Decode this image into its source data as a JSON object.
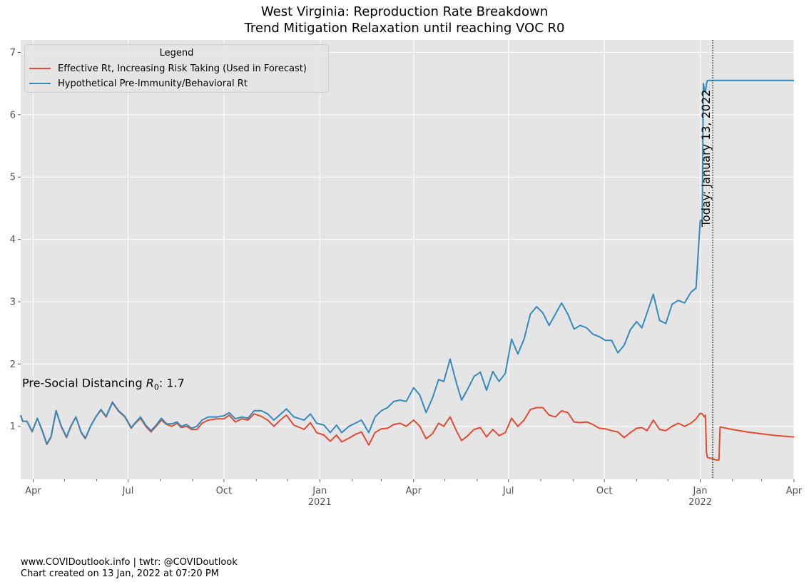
{
  "title_line1": "West Virginia: Reproduction Rate Breakdown",
  "title_line2": "Trend Mitigation Relaxation until reaching VOC R0",
  "legend": {
    "title": "Legend",
    "items": [
      {
        "label": "Effective Rt, Increasing Risk Taking (Used in Forecast)",
        "color": "#E24A33"
      },
      {
        "label": "Hypothetical Pre-Immunity/Behavioral Rt",
        "color": "#348ABD"
      }
    ]
  },
  "annotations": {
    "pre_social": "Pre-Social Distancing R0: 1.7",
    "today": "Today: January 13, 2022"
  },
  "footer": {
    "line1": "www.COVIDoutlook.info | twtr: @COVIDoutlook",
    "line2": "Chart created on 13 Jan, 2022 at 07:20 PM"
  },
  "chart_data": {
    "type": "line",
    "title": "West Virginia: Reproduction Rate Breakdown\nTrend Mitigation Relaxation until reaching VOC R0",
    "xlim": [
      "2020-03-20",
      "2022-04-01"
    ],
    "ylim": [
      0.15,
      7.2
    ],
    "grid": true,
    "legend_placement": "upper-left",
    "x_ticks": [
      {
        "date": "2020-04-01",
        "label": "Apr"
      },
      {
        "date": "2020-07-01",
        "label": "Jul"
      },
      {
        "date": "2020-10-01",
        "label": "Oct"
      },
      {
        "date": "2021-01-01",
        "label": "Jan",
        "sublabel": "2021"
      },
      {
        "date": "2021-04-01",
        "label": "Apr"
      },
      {
        "date": "2021-07-01",
        "label": "Jul"
      },
      {
        "date": "2021-10-01",
        "label": "Oct"
      },
      {
        "date": "2022-01-01",
        "label": "Jan",
        "sublabel": "2022"
      },
      {
        "date": "2022-04-01",
        "label": "Apr"
      }
    ],
    "minor_ticks": [
      "2020-05-01",
      "2020-06-01",
      "2020-08-01",
      "2020-09-01",
      "2020-11-01",
      "2020-12-01",
      "2021-02-01",
      "2021-03-01",
      "2021-05-01",
      "2021-06-01",
      "2021-08-01",
      "2021-09-01",
      "2021-11-01",
      "2021-12-01",
      "2022-02-01",
      "2022-03-01"
    ],
    "y_ticks": [
      1,
      2,
      3,
      4,
      5,
      6,
      7
    ],
    "today_line": "2022-01-13",
    "pre_social_r0": 1.7,
    "series": [
      {
        "name": "Effective Rt, Increasing Risk Taking (Used in Forecast)",
        "color": "#E24A33",
        "points": [
          [
            "2020-03-20",
            1.17
          ],
          [
            "2020-03-22",
            1.08
          ],
          [
            "2020-03-26",
            1.08
          ],
          [
            "2020-03-31",
            0.91
          ],
          [
            "2020-04-05",
            1.13
          ],
          [
            "2020-04-10",
            0.91
          ],
          [
            "2020-04-14",
            0.71
          ],
          [
            "2020-04-18",
            0.82
          ],
          [
            "2020-04-23",
            1.25
          ],
          [
            "2020-04-28",
            0.99
          ],
          [
            "2020-05-03",
            0.82
          ],
          [
            "2020-05-07",
            0.99
          ],
          [
            "2020-05-12",
            1.15
          ],
          [
            "2020-05-17",
            0.9
          ],
          [
            "2020-05-21",
            0.8
          ],
          [
            "2020-05-26",
            1.0
          ],
          [
            "2020-05-31",
            1.15
          ],
          [
            "2020-06-05",
            1.26
          ],
          [
            "2020-06-10",
            1.15
          ],
          [
            "2020-06-16",
            1.38
          ],
          [
            "2020-06-22",
            1.24
          ],
          [
            "2020-06-28",
            1.15
          ],
          [
            "2020-07-04",
            0.97
          ],
          [
            "2020-07-08",
            1.05
          ],
          [
            "2020-07-13",
            1.13
          ],
          [
            "2020-07-18",
            1.0
          ],
          [
            "2020-07-23",
            0.91
          ],
          [
            "2020-07-28",
            1.0
          ],
          [
            "2020-08-02",
            1.1
          ],
          [
            "2020-08-07",
            1.03
          ],
          [
            "2020-08-12",
            1.0
          ],
          [
            "2020-08-17",
            1.05
          ],
          [
            "2020-08-21",
            0.98
          ],
          [
            "2020-08-26",
            1.0
          ],
          [
            "2020-08-31",
            0.95
          ],
          [
            "2020-09-05",
            0.95
          ],
          [
            "2020-09-10",
            1.05
          ],
          [
            "2020-09-16",
            1.1
          ],
          [
            "2020-09-24",
            1.12
          ],
          [
            "2020-10-01",
            1.12
          ],
          [
            "2020-10-06",
            1.18
          ],
          [
            "2020-10-12",
            1.07
          ],
          [
            "2020-10-18",
            1.12
          ],
          [
            "2020-10-24",
            1.1
          ],
          [
            "2020-10-30",
            1.2
          ],
          [
            "2020-11-06",
            1.16
          ],
          [
            "2020-11-12",
            1.1
          ],
          [
            "2020-11-18",
            1.0
          ],
          [
            "2020-11-24",
            1.1
          ],
          [
            "2020-11-30",
            1.18
          ],
          [
            "2020-12-07",
            1.02
          ],
          [
            "2020-12-13",
            0.98
          ],
          [
            "2020-12-17",
            0.95
          ],
          [
            "2020-12-23",
            1.06
          ],
          [
            "2020-12-29",
            0.9
          ],
          [
            "2021-01-05",
            0.86
          ],
          [
            "2021-01-11",
            0.76
          ],
          [
            "2021-01-17",
            0.86
          ],
          [
            "2021-01-22",
            0.75
          ],
          [
            "2021-01-29",
            0.81
          ],
          [
            "2021-02-04",
            0.87
          ],
          [
            "2021-02-10",
            0.91
          ],
          [
            "2021-02-17",
            0.7
          ],
          [
            "2021-02-23",
            0.9
          ],
          [
            "2021-03-01",
            0.96
          ],
          [
            "2021-03-07",
            0.97
          ],
          [
            "2021-03-13",
            1.03
          ],
          [
            "2021-03-19",
            1.05
          ],
          [
            "2021-03-25",
            1.0
          ],
          [
            "2021-04-01",
            1.1
          ],
          [
            "2021-04-07",
            1.0
          ],
          [
            "2021-04-13",
            0.8
          ],
          [
            "2021-04-19",
            0.88
          ],
          [
            "2021-04-25",
            1.05
          ],
          [
            "2021-04-30",
            1.0
          ],
          [
            "2021-05-06",
            1.15
          ],
          [
            "2021-05-12",
            0.93
          ],
          [
            "2021-05-17",
            0.77
          ],
          [
            "2021-05-23",
            0.85
          ],
          [
            "2021-05-29",
            0.95
          ],
          [
            "2021-06-04",
            0.98
          ],
          [
            "2021-06-10",
            0.83
          ],
          [
            "2021-06-16",
            0.95
          ],
          [
            "2021-06-22",
            0.85
          ],
          [
            "2021-06-28",
            0.9
          ],
          [
            "2021-07-04",
            1.13
          ],
          [
            "2021-07-10",
            1.0
          ],
          [
            "2021-07-16",
            1.1
          ],
          [
            "2021-07-22",
            1.27
          ],
          [
            "2021-07-28",
            1.3
          ],
          [
            "2021-08-03",
            1.3
          ],
          [
            "2021-08-09",
            1.18
          ],
          [
            "2021-08-15",
            1.15
          ],
          [
            "2021-08-21",
            1.25
          ],
          [
            "2021-08-27",
            1.22
          ],
          [
            "2021-09-02",
            1.07
          ],
          [
            "2021-09-08",
            1.06
          ],
          [
            "2021-09-14",
            1.07
          ],
          [
            "2021-09-20",
            1.03
          ],
          [
            "2021-09-26",
            0.97
          ],
          [
            "2021-10-02",
            0.96
          ],
          [
            "2021-10-08",
            0.93
          ],
          [
            "2021-10-14",
            0.91
          ],
          [
            "2021-10-20",
            0.82
          ],
          [
            "2021-10-26",
            0.9
          ],
          [
            "2021-11-01",
            0.97
          ],
          [
            "2021-11-06",
            0.98
          ],
          [
            "2021-11-11",
            0.93
          ],
          [
            "2021-11-17",
            1.1
          ],
          [
            "2021-11-23",
            0.95
          ],
          [
            "2021-11-29",
            0.93
          ],
          [
            "2021-12-05",
            1.0
          ],
          [
            "2021-12-11",
            1.05
          ],
          [
            "2021-12-17",
            1.0
          ],
          [
            "2021-12-23",
            1.05
          ],
          [
            "2021-12-28",
            1.12
          ],
          [
            "2022-01-01",
            1.21
          ],
          [
            "2022-01-03",
            1.2
          ],
          [
            "2022-01-05",
            1.15
          ],
          [
            "2022-01-06",
            1.18
          ],
          [
            "2022-01-07",
            0.58
          ],
          [
            "2022-01-08",
            0.5
          ],
          [
            "2022-01-13",
            0.48
          ],
          [
            "2022-01-16",
            0.46
          ],
          [
            "2022-01-19",
            0.46
          ],
          [
            "2022-01-20",
            0.99
          ],
          [
            "2022-02-01",
            0.95
          ],
          [
            "2022-02-15",
            0.91
          ],
          [
            "2022-03-01",
            0.88
          ],
          [
            "2022-03-15",
            0.85
          ],
          [
            "2022-04-01",
            0.83
          ]
        ]
      },
      {
        "name": "Hypothetical Pre-Immunity/Behavioral Rt",
        "color": "#348ABD",
        "points": [
          [
            "2020-03-20",
            1.18
          ],
          [
            "2020-03-22",
            1.08
          ],
          [
            "2020-03-26",
            1.08
          ],
          [
            "2020-03-31",
            0.92
          ],
          [
            "2020-04-05",
            1.13
          ],
          [
            "2020-04-10",
            0.92
          ],
          [
            "2020-04-14",
            0.72
          ],
          [
            "2020-04-18",
            0.83
          ],
          [
            "2020-04-23",
            1.25
          ],
          [
            "2020-04-28",
            1.0
          ],
          [
            "2020-05-03",
            0.83
          ],
          [
            "2020-05-07",
            1.0
          ],
          [
            "2020-05-12",
            1.15
          ],
          [
            "2020-05-17",
            0.91
          ],
          [
            "2020-05-21",
            0.81
          ],
          [
            "2020-05-26",
            1.0
          ],
          [
            "2020-05-31",
            1.15
          ],
          [
            "2020-06-05",
            1.27
          ],
          [
            "2020-06-10",
            1.16
          ],
          [
            "2020-06-16",
            1.39
          ],
          [
            "2020-06-22",
            1.25
          ],
          [
            "2020-06-28",
            1.16
          ],
          [
            "2020-07-04",
            0.98
          ],
          [
            "2020-07-08",
            1.06
          ],
          [
            "2020-07-13",
            1.15
          ],
          [
            "2020-07-18",
            1.02
          ],
          [
            "2020-07-23",
            0.93
          ],
          [
            "2020-07-28",
            1.02
          ],
          [
            "2020-08-02",
            1.13
          ],
          [
            "2020-08-07",
            1.04
          ],
          [
            "2020-08-12",
            1.04
          ],
          [
            "2020-08-17",
            1.07
          ],
          [
            "2020-08-21",
            1.0
          ],
          [
            "2020-08-26",
            1.03
          ],
          [
            "2020-08-31",
            0.97
          ],
          [
            "2020-09-05",
            1.0
          ],
          [
            "2020-09-10",
            1.1
          ],
          [
            "2020-09-16",
            1.15
          ],
          [
            "2020-09-24",
            1.15
          ],
          [
            "2020-10-01",
            1.17
          ],
          [
            "2020-10-06",
            1.22
          ],
          [
            "2020-10-12",
            1.12
          ],
          [
            "2020-10-18",
            1.15
          ],
          [
            "2020-10-24",
            1.13
          ],
          [
            "2020-10-30",
            1.25
          ],
          [
            "2020-11-06",
            1.25
          ],
          [
            "2020-11-12",
            1.2
          ],
          [
            "2020-11-18",
            1.1
          ],
          [
            "2020-11-24",
            1.19
          ],
          [
            "2020-11-30",
            1.28
          ],
          [
            "2020-12-07",
            1.15
          ],
          [
            "2020-12-13",
            1.12
          ],
          [
            "2020-12-17",
            1.1
          ],
          [
            "2020-12-23",
            1.2
          ],
          [
            "2020-12-29",
            1.05
          ],
          [
            "2021-01-05",
            1.02
          ],
          [
            "2021-01-11",
            0.9
          ],
          [
            "2021-01-17",
            1.02
          ],
          [
            "2021-01-22",
            0.9
          ],
          [
            "2021-01-29",
            1.0
          ],
          [
            "2021-02-04",
            1.05
          ],
          [
            "2021-02-10",
            1.1
          ],
          [
            "2021-02-17",
            0.9
          ],
          [
            "2021-02-23",
            1.15
          ],
          [
            "2021-03-01",
            1.25
          ],
          [
            "2021-03-07",
            1.3
          ],
          [
            "2021-03-13",
            1.4
          ],
          [
            "2021-03-19",
            1.42
          ],
          [
            "2021-03-25",
            1.4
          ],
          [
            "2021-04-01",
            1.62
          ],
          [
            "2021-04-07",
            1.5
          ],
          [
            "2021-04-13",
            1.22
          ],
          [
            "2021-04-19",
            1.45
          ],
          [
            "2021-04-25",
            1.75
          ],
          [
            "2021-04-30",
            1.72
          ],
          [
            "2021-05-06",
            2.08
          ],
          [
            "2021-05-12",
            1.7
          ],
          [
            "2021-05-17",
            1.42
          ],
          [
            "2021-05-23",
            1.6
          ],
          [
            "2021-05-29",
            1.8
          ],
          [
            "2021-06-04",
            1.87
          ],
          [
            "2021-06-10",
            1.58
          ],
          [
            "2021-06-16",
            1.88
          ],
          [
            "2021-06-22",
            1.72
          ],
          [
            "2021-06-28",
            1.85
          ],
          [
            "2021-07-04",
            2.4
          ],
          [
            "2021-07-10",
            2.16
          ],
          [
            "2021-07-16",
            2.4
          ],
          [
            "2021-07-22",
            2.8
          ],
          [
            "2021-07-28",
            2.92
          ],
          [
            "2021-08-03",
            2.82
          ],
          [
            "2021-08-09",
            2.62
          ],
          [
            "2021-08-15",
            2.8
          ],
          [
            "2021-08-21",
            2.98
          ],
          [
            "2021-08-27",
            2.8
          ],
          [
            "2021-09-02",
            2.56
          ],
          [
            "2021-09-08",
            2.62
          ],
          [
            "2021-09-14",
            2.58
          ],
          [
            "2021-09-20",
            2.48
          ],
          [
            "2021-09-26",
            2.44
          ],
          [
            "2021-10-02",
            2.38
          ],
          [
            "2021-10-08",
            2.38
          ],
          [
            "2021-10-14",
            2.18
          ],
          [
            "2021-10-20",
            2.3
          ],
          [
            "2021-10-26",
            2.55
          ],
          [
            "2021-11-01",
            2.68
          ],
          [
            "2021-11-06",
            2.58
          ],
          [
            "2021-11-11",
            2.82
          ],
          [
            "2021-11-17",
            3.12
          ],
          [
            "2021-11-23",
            2.7
          ],
          [
            "2021-11-29",
            2.65
          ],
          [
            "2021-12-05",
            2.96
          ],
          [
            "2021-12-11",
            3.02
          ],
          [
            "2021-12-17",
            2.98
          ],
          [
            "2021-12-23",
            3.15
          ],
          [
            "2021-12-28",
            3.22
          ],
          [
            "2022-01-01",
            4.3
          ],
          [
            "2022-01-03",
            4.32
          ],
          [
            "2022-01-04",
            6.5
          ],
          [
            "2022-01-05",
            6.4
          ],
          [
            "2022-01-06",
            6.36
          ],
          [
            "2022-01-07",
            6.5
          ],
          [
            "2022-01-08",
            6.55
          ],
          [
            "2022-01-13",
            6.55
          ],
          [
            "2022-02-01",
            6.55
          ],
          [
            "2022-03-01",
            6.55
          ],
          [
            "2022-04-01",
            6.55
          ]
        ]
      }
    ]
  }
}
